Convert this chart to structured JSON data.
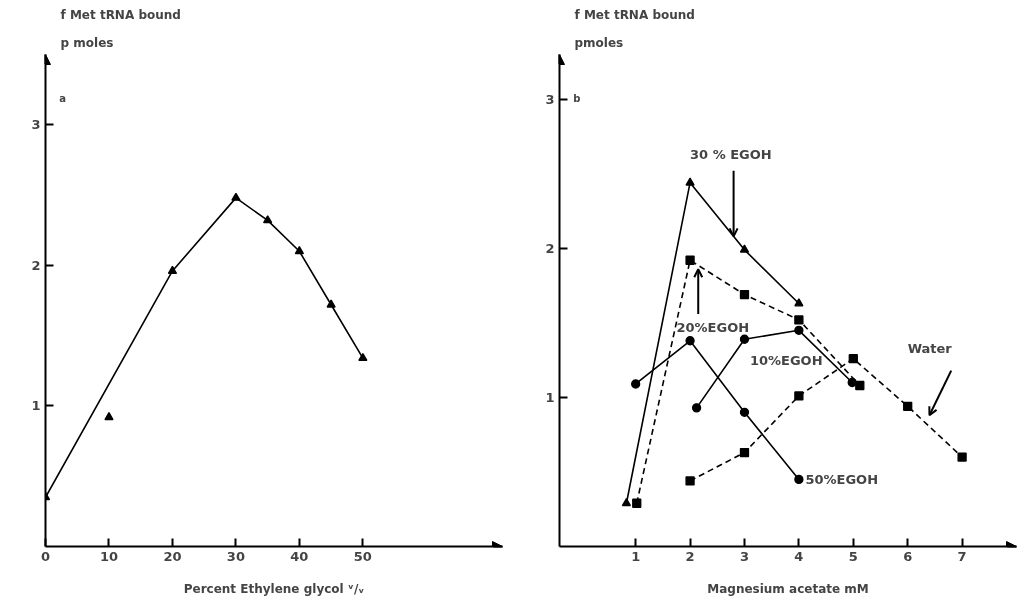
{
  "chart_data": [
    {
      "type": "line",
      "ylabel": "f Met  tRNA bound\np moles",
      "xlabel": "Percent Ethylene glycol ᵛ/ᵥ",
      "annotations": [
        "a"
      ],
      "xlim": [
        0,
        72
      ],
      "ylim": [
        0,
        3.5
      ],
      "xticks": [
        0,
        10,
        20,
        30,
        40,
        50
      ],
      "yticks": [
        1,
        2,
        3
      ],
      "grid": false,
      "series": [
        {
          "type": "scatter",
          "color": "#000000",
          "marker": "triangle",
          "x": [
            0,
            10,
            20,
            30,
            35,
            40,
            45,
            50
          ],
          "values": [
            0.35,
            0.92,
            1.96,
            2.48,
            2.32,
            2.1,
            1.72,
            1.34
          ]
        },
        {
          "type": "line",
          "color": "#000000",
          "marker": "none",
          "line_style": "solid",
          "x": [
            0,
            20,
            30,
            35,
            40,
            45,
            50
          ],
          "values": [
            0.35,
            1.96,
            2.48,
            2.32,
            2.1,
            1.72,
            1.34
          ]
        }
      ]
    },
    {
      "type": "line",
      "ylabel": "f Met  tRNA bound\npmoles",
      "xlabel": "Magnesium acetate mM",
      "annotations": [
        "b"
      ],
      "xlim": [
        -0.4,
        8.0
      ],
      "ylim": [
        0,
        3.3
      ],
      "xticks": [
        1,
        2,
        3,
        4,
        5,
        6,
        7
      ],
      "yticks": [
        1,
        2,
        3
      ],
      "grid": false,
      "series": [
        {
          "name": "30 % EGOH",
          "color": "#000000",
          "marker": "triangle",
          "line_style": "solid",
          "x": [
            0.83,
            2,
            3,
            4
          ],
          "values": [
            0.29,
            2.44,
            1.99,
            1.63
          ]
        },
        {
          "name": "20%EGOH",
          "color": "#000000",
          "marker": "square",
          "line_style": "dashed",
          "x": [
            1.02,
            2,
            3,
            4,
            5.12
          ],
          "values": [
            0.29,
            1.92,
            1.69,
            1.52,
            1.08
          ]
        },
        {
          "name": "10%EGOH",
          "color": "#000000",
          "marker": "circle",
          "line_style": "solid",
          "x": [
            2.12,
            3,
            4,
            4.98
          ],
          "values": [
            0.93,
            1.39,
            1.45,
            1.1
          ]
        },
        {
          "name": "50%EGOH",
          "color": "#000000",
          "marker": "circle",
          "line_style": "solid",
          "x": [
            1,
            2,
            3,
            4
          ],
          "values": [
            1.09,
            1.38,
            0.9,
            0.45
          ]
        },
        {
          "name": "Water",
          "color": "#000000",
          "marker": "square",
          "line_style": "dashed",
          "x": [
            2,
            3,
            4,
            5,
            6,
            7
          ],
          "values": [
            0.44,
            0.63,
            1.01,
            1.26,
            0.94,
            0.6
          ]
        }
      ]
    }
  ]
}
